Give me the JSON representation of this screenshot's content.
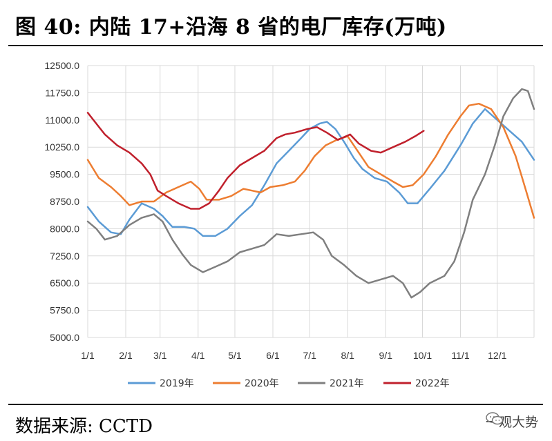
{
  "header": {
    "title": "图 40:  内陆 17+沿海 8 省的电厂库存(万吨)"
  },
  "footer": {
    "source": "数据来源:  CCTD",
    "watermark": "一观大势",
    "watermark_icon": "wechat-icon"
  },
  "chart_data": {
    "type": "line",
    "title": "图 40:  内陆 17+沿海 8 省的电厂库存(万吨)",
    "xlabel": "",
    "ylabel": "",
    "ylim": [
      5000,
      12500
    ],
    "yticks": [
      "12500.0",
      "11750.0",
      "11000.0",
      "10250.0",
      "9500.0",
      "8750.0",
      "8000.0",
      "7250.0",
      "6500.0",
      "5750.0",
      "5000.0"
    ],
    "xlim": [
      1,
      365
    ],
    "xticks": [
      {
        "label": "1/1",
        "day": 1
      },
      {
        "label": "2/1",
        "day": 32
      },
      {
        "label": "3/1",
        "day": 60
      },
      {
        "label": "4/1",
        "day": 91
      },
      {
        "label": "5/1",
        "day": 121
      },
      {
        "label": "6/1",
        "day": 152
      },
      {
        "label": "7/1",
        "day": 182
      },
      {
        "label": "8/1",
        "day": 213
      },
      {
        "label": "9/1",
        "day": 244
      },
      {
        "label": "10/1",
        "day": 274
      },
      {
        "label": "11/1",
        "day": 305
      },
      {
        "label": "12/1",
        "day": 335
      }
    ],
    "grid": true,
    "legend_position": "bottom",
    "series": [
      {
        "name": "2019年",
        "color": "#5B9BD5",
        "points": [
          [
            1,
            8600
          ],
          [
            10,
            8200
          ],
          [
            20,
            7900
          ],
          [
            28,
            7850
          ],
          [
            35,
            8250
          ],
          [
            45,
            8700
          ],
          [
            55,
            8550
          ],
          [
            62,
            8350
          ],
          [
            70,
            8050
          ],
          [
            80,
            8050
          ],
          [
            88,
            8000
          ],
          [
            95,
            7800
          ],
          [
            105,
            7800
          ],
          [
            115,
            8000
          ],
          [
            125,
            8350
          ],
          [
            135,
            8650
          ],
          [
            145,
            9200
          ],
          [
            155,
            9800
          ],
          [
            165,
            10150
          ],
          [
            175,
            10500
          ],
          [
            182,
            10750
          ],
          [
            190,
            10900
          ],
          [
            196,
            10950
          ],
          [
            203,
            10750
          ],
          [
            210,
            10400
          ],
          [
            218,
            9950
          ],
          [
            225,
            9650
          ],
          [
            235,
            9400
          ],
          [
            245,
            9300
          ],
          [
            255,
            9000
          ],
          [
            262,
            8700
          ],
          [
            270,
            8700
          ],
          [
            280,
            9100
          ],
          [
            292,
            9600
          ],
          [
            305,
            10300
          ],
          [
            315,
            10900
          ],
          [
            325,
            11300
          ],
          [
            335,
            11000
          ],
          [
            345,
            10700
          ],
          [
            355,
            10400
          ],
          [
            365,
            9900
          ]
        ]
      },
      {
        "name": "2020年",
        "color": "#ED7D31",
        "points": [
          [
            1,
            9900
          ],
          [
            10,
            9400
          ],
          [
            20,
            9150
          ],
          [
            28,
            8900
          ],
          [
            35,
            8650
          ],
          [
            45,
            8750
          ],
          [
            55,
            8750
          ],
          [
            65,
            9000
          ],
          [
            75,
            9150
          ],
          [
            85,
            9300
          ],
          [
            92,
            9100
          ],
          [
            98,
            8800
          ],
          [
            108,
            8800
          ],
          [
            118,
            8900
          ],
          [
            128,
            9100
          ],
          [
            135,
            9050
          ],
          [
            142,
            9000
          ],
          [
            150,
            9150
          ],
          [
            160,
            9200
          ],
          [
            170,
            9300
          ],
          [
            178,
            9600
          ],
          [
            186,
            10000
          ],
          [
            195,
            10300
          ],
          [
            204,
            10450
          ],
          [
            213,
            10550
          ],
          [
            222,
            10100
          ],
          [
            230,
            9700
          ],
          [
            240,
            9500
          ],
          [
            250,
            9300
          ],
          [
            258,
            9150
          ],
          [
            266,
            9200
          ],
          [
            275,
            9500
          ],
          [
            285,
            10000
          ],
          [
            295,
            10600
          ],
          [
            305,
            11100
          ],
          [
            312,
            11400
          ],
          [
            320,
            11450
          ],
          [
            330,
            11300
          ],
          [
            340,
            10800
          ],
          [
            350,
            10000
          ],
          [
            358,
            9100
          ],
          [
            365,
            8300
          ]
        ]
      },
      {
        "name": "2021年",
        "color": "#7F7F7F",
        "points": [
          [
            1,
            8200
          ],
          [
            8,
            8000
          ],
          [
            15,
            7700
          ],
          [
            25,
            7800
          ],
          [
            35,
            8100
          ],
          [
            45,
            8300
          ],
          [
            55,
            8400
          ],
          [
            62,
            8200
          ],
          [
            70,
            7700
          ],
          [
            78,
            7300
          ],
          [
            85,
            7000
          ],
          [
            95,
            6800
          ],
          [
            105,
            6950
          ],
          [
            115,
            7100
          ],
          [
            125,
            7350
          ],
          [
            135,
            7450
          ],
          [
            145,
            7550
          ],
          [
            155,
            7850
          ],
          [
            165,
            7800
          ],
          [
            175,
            7850
          ],
          [
            185,
            7900
          ],
          [
            193,
            7700
          ],
          [
            200,
            7250
          ],
          [
            210,
            7000
          ],
          [
            220,
            6700
          ],
          [
            230,
            6500
          ],
          [
            240,
            6600
          ],
          [
            250,
            6700
          ],
          [
            258,
            6500
          ],
          [
            265,
            6100
          ],
          [
            272,
            6250
          ],
          [
            280,
            6500
          ],
          [
            292,
            6700
          ],
          [
            300,
            7100
          ],
          [
            308,
            7900
          ],
          [
            315,
            8800
          ],
          [
            325,
            9500
          ],
          [
            333,
            10300
          ],
          [
            340,
            11100
          ],
          [
            348,
            11600
          ],
          [
            355,
            11850
          ],
          [
            360,
            11800
          ],
          [
            365,
            11300
          ]
        ]
      },
      {
        "name": "2022年",
        "color": "#C0202C",
        "points": [
          [
            1,
            11200
          ],
          [
            8,
            10900
          ],
          [
            15,
            10600
          ],
          [
            25,
            10300
          ],
          [
            35,
            10100
          ],
          [
            45,
            9800
          ],
          [
            52,
            9500
          ],
          [
            58,
            9050
          ],
          [
            65,
            8900
          ],
          [
            75,
            8700
          ],
          [
            85,
            8550
          ],
          [
            92,
            8550
          ],
          [
            100,
            8700
          ],
          [
            108,
            9050
          ],
          [
            115,
            9400
          ],
          [
            125,
            9750
          ],
          [
            135,
            9950
          ],
          [
            145,
            10150
          ],
          [
            155,
            10500
          ],
          [
            162,
            10600
          ],
          [
            170,
            10650
          ],
          [
            180,
            10750
          ],
          [
            188,
            10800
          ],
          [
            196,
            10650
          ],
          [
            205,
            10450
          ],
          [
            215,
            10600
          ],
          [
            222,
            10350
          ],
          [
            232,
            10150
          ],
          [
            240,
            10100
          ],
          [
            250,
            10250
          ],
          [
            260,
            10400
          ],
          [
            268,
            10550
          ],
          [
            275,
            10700
          ]
        ]
      }
    ]
  }
}
